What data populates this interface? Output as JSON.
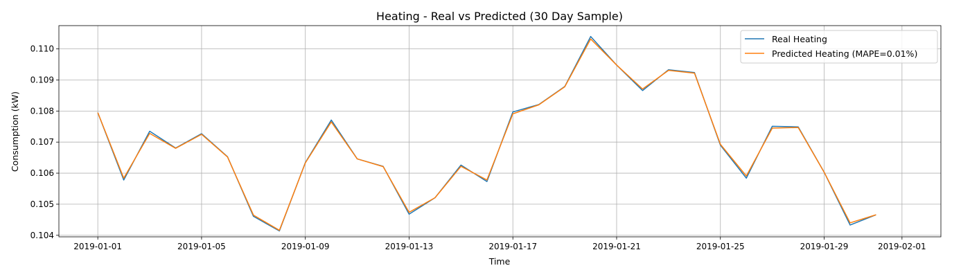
{
  "chart_data": {
    "type": "line",
    "title": "Heating - Real vs Predicted (30 Day Sample)",
    "xlabel": "Time",
    "ylabel": "Consumption (kW)",
    "xlim": [
      "2018-12-30T12:00",
      "2019-02-02T12:00"
    ],
    "ylim": [
      0.10395,
      0.11075
    ],
    "x_ticks": [
      "2019-01-01",
      "2019-01-05",
      "2019-01-09",
      "2019-01-13",
      "2019-01-17",
      "2019-01-21",
      "2019-01-25",
      "2019-01-29",
      "2019-02-01"
    ],
    "y_ticks": [
      "0.104",
      "0.105",
      "0.106",
      "0.107",
      "0.108",
      "0.109",
      "0.110"
    ],
    "grid": true,
    "legend_position": "top-right",
    "x": [
      "2019-01-01",
      "2019-01-02",
      "2019-01-03",
      "2019-01-04",
      "2019-01-05",
      "2019-01-06",
      "2019-01-07",
      "2019-01-08",
      "2019-01-09",
      "2019-01-10",
      "2019-01-11",
      "2019-01-12",
      "2019-01-13",
      "2019-01-14",
      "2019-01-15",
      "2019-01-16",
      "2019-01-17",
      "2019-01-18",
      "2019-01-19",
      "2019-01-20",
      "2019-01-21",
      "2019-01-22",
      "2019-01-23",
      "2019-01-24",
      "2019-01-25",
      "2019-01-26",
      "2019-01-27",
      "2019-01-28",
      "2019-01-29",
      "2019-01-30",
      "2019-01-31"
    ],
    "series": [
      {
        "name": "Real Heating",
        "color": "#1f77b4",
        "values": [
          0.10795,
          0.10578,
          0.10735,
          0.10681,
          0.10727,
          0.10653,
          0.10461,
          0.10414,
          0.10634,
          0.10771,
          0.10646,
          0.10622,
          0.10468,
          0.10521,
          0.10626,
          0.10573,
          0.10797,
          0.10821,
          0.10879,
          0.1104,
          0.10948,
          0.10866,
          0.10933,
          0.10924,
          0.1069,
          0.10584,
          0.10751,
          0.10749,
          0.10603,
          0.10433,
          0.10466
        ]
      },
      {
        "name": "Predicted Heating (MAPE=0.01%)",
        "color": "#ff7f0e",
        "values": [
          0.10795,
          0.10584,
          0.10728,
          0.1068,
          0.10725,
          0.10652,
          0.10465,
          0.10416,
          0.10633,
          0.10765,
          0.10646,
          0.10621,
          0.10474,
          0.10521,
          0.10622,
          0.10578,
          0.10791,
          0.1082,
          0.10878,
          0.11032,
          0.10948,
          0.10871,
          0.10931,
          0.10922,
          0.10693,
          0.10591,
          0.10745,
          0.10747,
          0.10603,
          0.1044,
          0.10466
        ]
      }
    ]
  }
}
